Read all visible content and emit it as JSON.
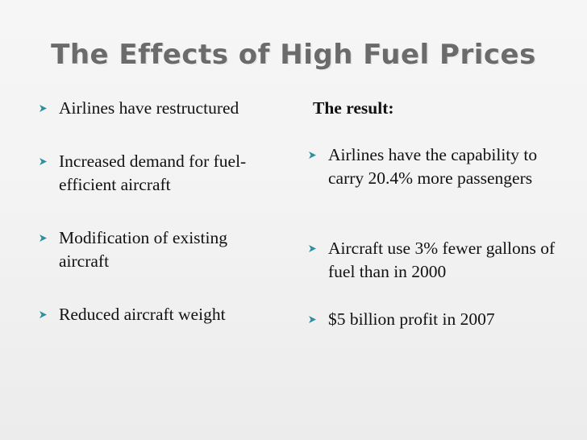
{
  "slide": {
    "title": "The Effects of High Fuel Prices",
    "left_bullets": [
      "Airlines have restructured",
      "Increased demand for fuel-efficient aircraft",
      "Modification of existing aircraft",
      "Reduced aircraft weight"
    ],
    "result_heading": "The result:",
    "right_bullets": [
      "Airlines have the capability to carry 20.4% more passengers",
      "Aircraft use 3% fewer gallons of fuel than in 2000",
      "$5 billion profit in 2007"
    ],
    "bullet_icon": "arrowhead-bullet-icon",
    "bullet_color": "#2a8fa0"
  }
}
